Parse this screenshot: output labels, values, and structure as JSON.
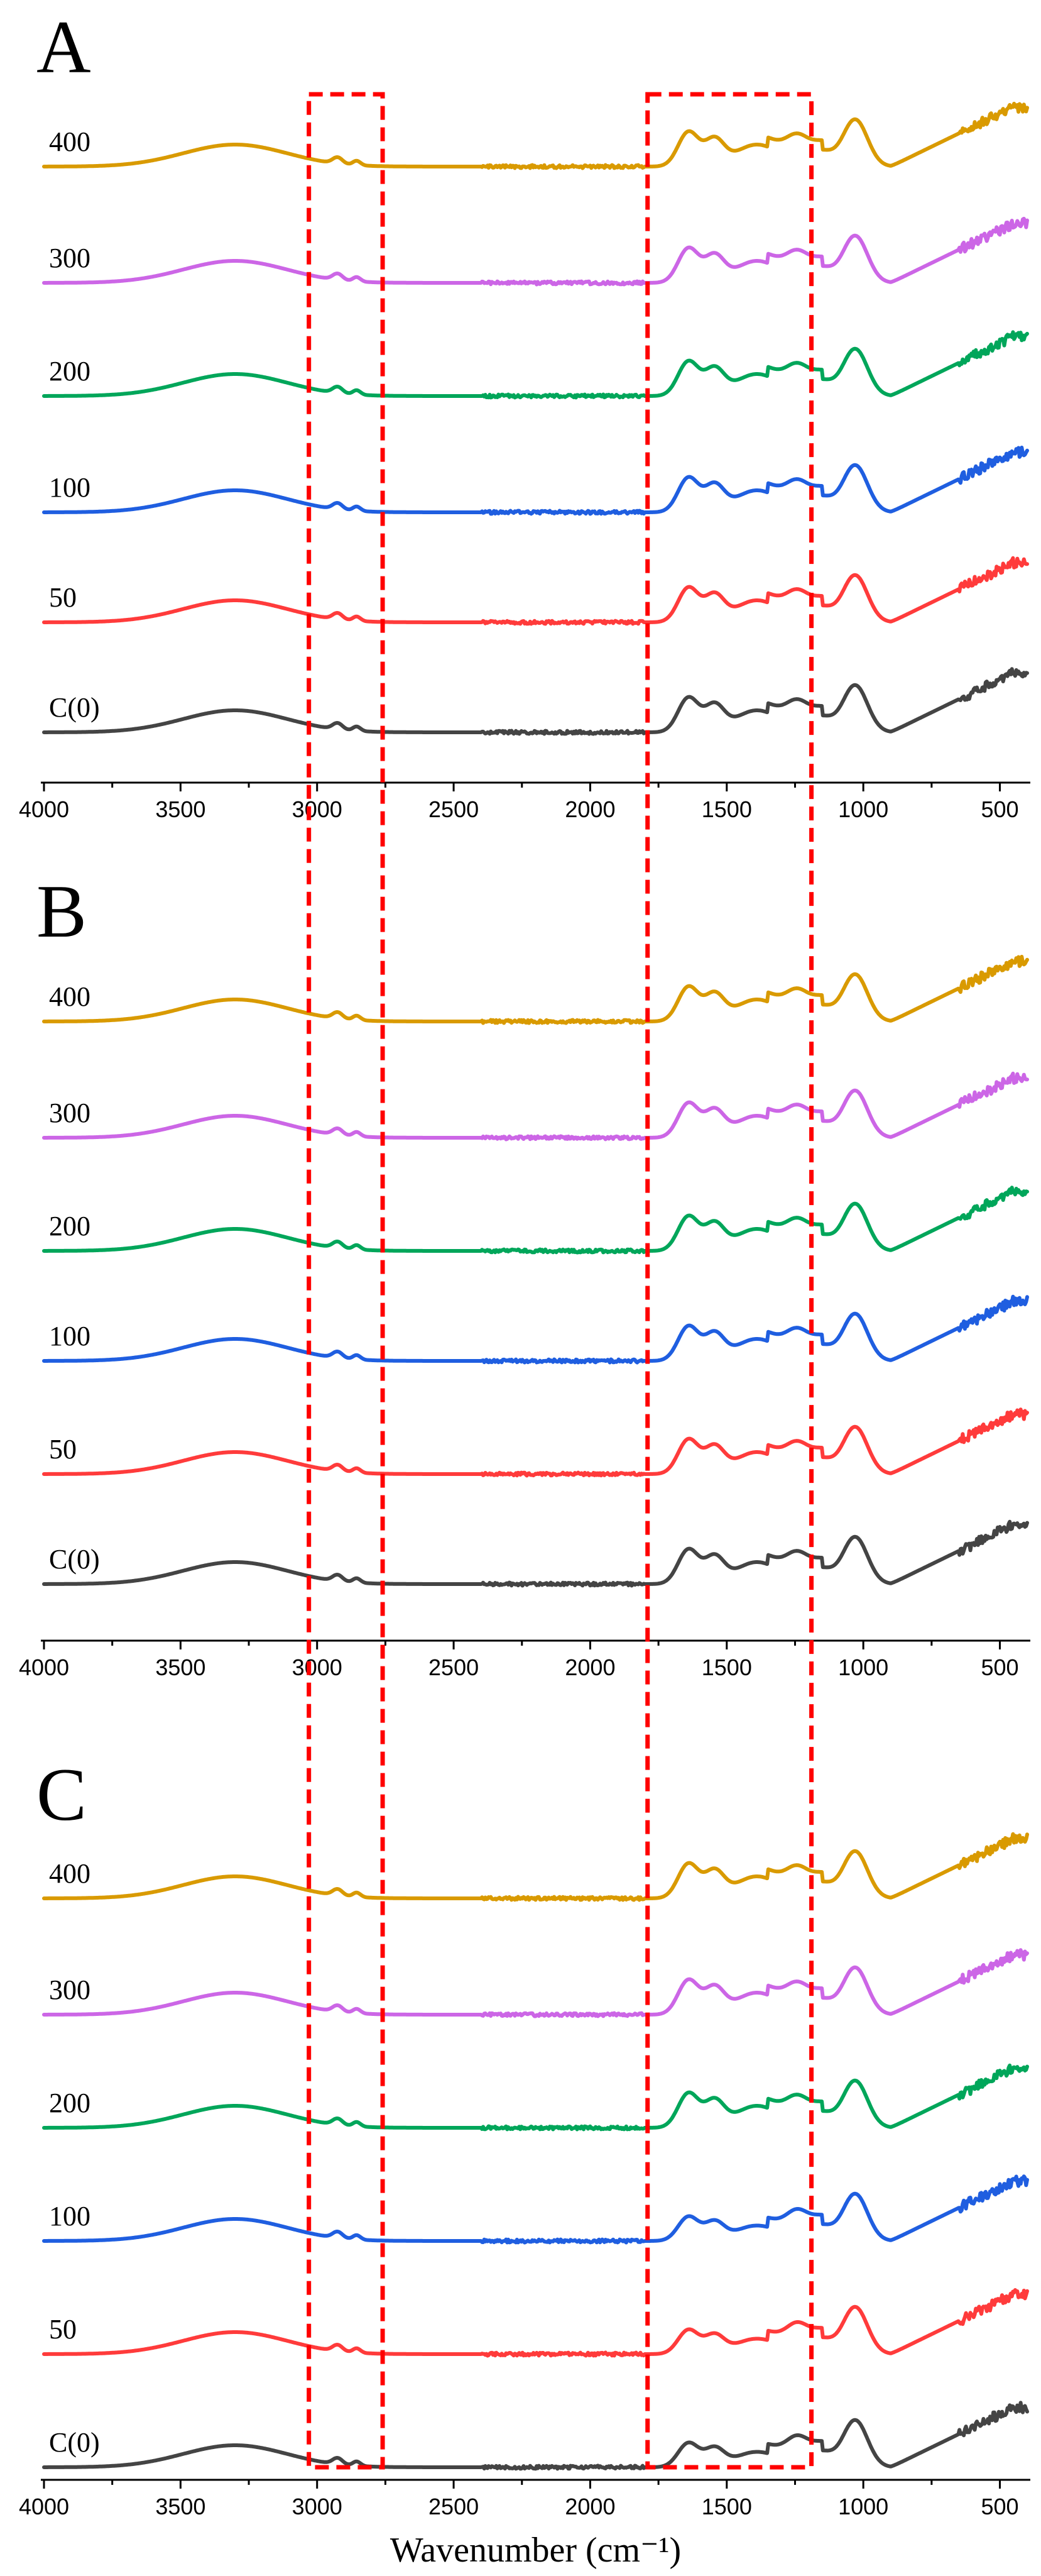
{
  "chart_data": [
    {
      "type": "line",
      "panel": "A",
      "xlabel": "",
      "ylabel": "",
      "xlim": [
        4000,
        400
      ],
      "xticks": [
        4000,
        3500,
        3000,
        2500,
        2000,
        1500,
        1000,
        500
      ],
      "series": [
        {
          "name": "400",
          "color": "#d99a00"
        },
        {
          "name": "300",
          "color": "#cc66e6"
        },
        {
          "name": "200",
          "color": "#00a65a"
        },
        {
          "name": "100",
          "color": "#1f5ee0"
        },
        {
          "name": "50",
          "color": "#ff3b3b"
        },
        {
          "name": "C(0)",
          "color": "#444444"
        }
      ]
    },
    {
      "type": "line",
      "panel": "B",
      "xlabel": "",
      "ylabel": "",
      "xlim": [
        4000,
        400
      ],
      "xticks": [
        4000,
        3500,
        3000,
        2500,
        2000,
        1500,
        1000,
        500
      ],
      "series": [
        {
          "name": "400",
          "color": "#d99a00"
        },
        {
          "name": "300",
          "color": "#cc66e6"
        },
        {
          "name": "200",
          "color": "#00a65a"
        },
        {
          "name": "100",
          "color": "#1f5ee0"
        },
        {
          "name": "50",
          "color": "#ff3b3b"
        },
        {
          "name": "C(0)",
          "color": "#444444"
        }
      ]
    },
    {
      "type": "line",
      "panel": "C",
      "xlabel": "Wavenumber (cm⁻¹)",
      "ylabel": "",
      "xlim": [
        4000,
        400
      ],
      "xticks": [
        4000,
        3500,
        3000,
        2500,
        2000,
        1500,
        1000,
        500
      ],
      "series": [
        {
          "name": "400",
          "color": "#d99a00"
        },
        {
          "name": "300",
          "color": "#cc66e6"
        },
        {
          "name": "200",
          "color": "#00a65a"
        },
        {
          "name": "100",
          "color": "#1f5ee0"
        },
        {
          "name": "50",
          "color": "#ff3b3b"
        },
        {
          "name": "C(0)",
          "color": "#444444"
        }
      ]
    }
  ],
  "highlight_regions": [
    {
      "from": 3030,
      "to": 2760
    },
    {
      "from": 1790,
      "to": 1190
    }
  ]
}
